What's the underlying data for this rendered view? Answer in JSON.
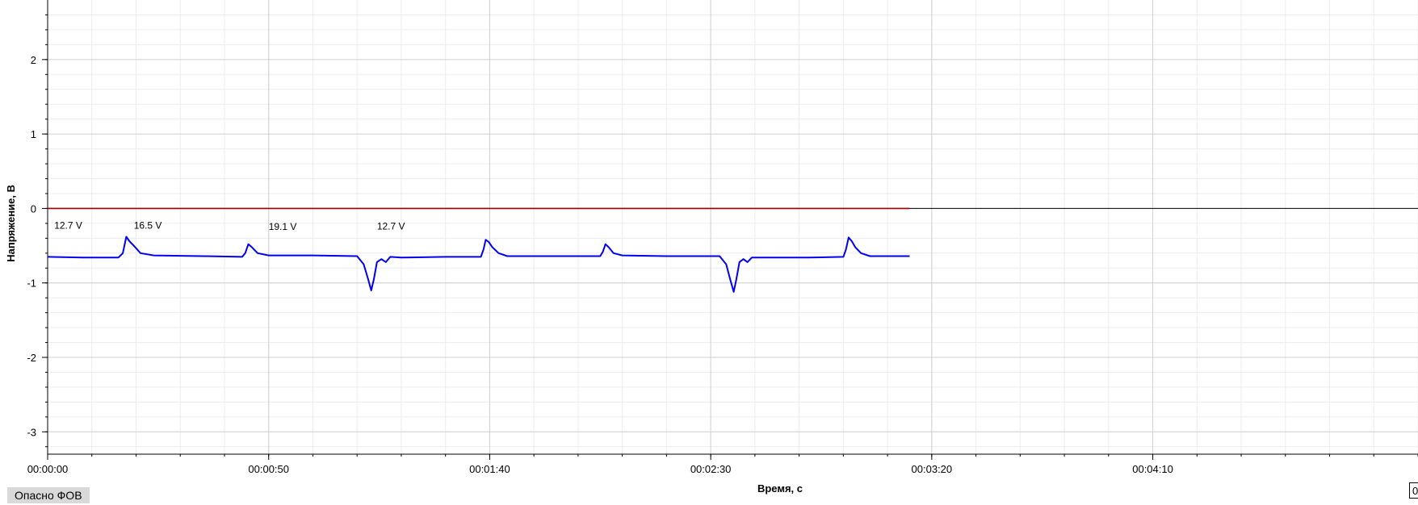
{
  "chart_data": {
    "type": "line",
    "xlabel": "Время, с",
    "ylabel": "Напряжение, В",
    "xlim": [
      0,
      310
    ],
    "ylim": [
      -3.3,
      2.8
    ],
    "x_ticks": [
      0,
      50,
      100,
      150,
      200,
      250
    ],
    "x_tick_labels": [
      "00:00:00",
      "00:00:50",
      "00:01:40",
      "00:02:30",
      "00:03:20",
      "00:04:10"
    ],
    "y_ticks": [
      -3,
      -2,
      -1,
      0,
      1,
      2
    ],
    "grid": true,
    "reference_line": {
      "y": 0,
      "color": "#000000"
    },
    "series": [
      {
        "color": "#0000ee",
        "points": [
          [
            0,
            -0.65
          ],
          [
            8,
            -0.66
          ],
          [
            16,
            -0.66
          ],
          [
            17,
            -0.6
          ],
          [
            17.8,
            -0.38
          ],
          [
            18.5,
            -0.44
          ],
          [
            19.5,
            -0.5
          ],
          [
            21,
            -0.6
          ],
          [
            24,
            -0.63
          ],
          [
            35,
            -0.64
          ],
          [
            44,
            -0.65
          ],
          [
            44.7,
            -0.6
          ],
          [
            45.4,
            -0.48
          ],
          [
            46.2,
            -0.52
          ],
          [
            47.5,
            -0.6
          ],
          [
            50,
            -0.63
          ],
          [
            60,
            -0.63
          ],
          [
            70,
            -0.64
          ],
          [
            71.5,
            -0.75
          ],
          [
            72.5,
            -0.95
          ],
          [
            73.2,
            -1.1
          ],
          [
            73.8,
            -0.95
          ],
          [
            74.5,
            -0.72
          ],
          [
            75.5,
            -0.68
          ],
          [
            76.5,
            -0.72
          ],
          [
            77.5,
            -0.65
          ],
          [
            80,
            -0.66
          ],
          [
            90,
            -0.65
          ],
          [
            98,
            -0.65
          ],
          [
            98.6,
            -0.55
          ],
          [
            99.1,
            -0.42
          ],
          [
            99.8,
            -0.45
          ],
          [
            100.6,
            -0.52
          ],
          [
            102,
            -0.6
          ],
          [
            104,
            -0.64
          ],
          [
            115,
            -0.64
          ],
          [
            125,
            -0.64
          ],
          [
            125.6,
            -0.58
          ],
          [
            126.2,
            -0.48
          ],
          [
            126.9,
            -0.52
          ],
          [
            128,
            -0.6
          ],
          [
            130,
            -0.63
          ],
          [
            140,
            -0.64
          ],
          [
            152,
            -0.64
          ],
          [
            153.5,
            -0.75
          ],
          [
            154.4,
            -0.95
          ],
          [
            155.2,
            -1.12
          ],
          [
            155.8,
            -0.95
          ],
          [
            156.5,
            -0.72
          ],
          [
            157.4,
            -0.68
          ],
          [
            158.3,
            -0.72
          ],
          [
            159.3,
            -0.66
          ],
          [
            162,
            -0.66
          ],
          [
            172,
            -0.66
          ],
          [
            180,
            -0.65
          ],
          [
            180.6,
            -0.55
          ],
          [
            181.2,
            -0.39
          ],
          [
            181.9,
            -0.44
          ],
          [
            182.7,
            -0.52
          ],
          [
            184,
            -0.6
          ],
          [
            186,
            -0.64
          ],
          [
            195,
            -0.64
          ]
        ]
      },
      {
        "color": "#a00000",
        "points": [
          [
            0,
            0
          ],
          [
            195,
            0
          ]
        ]
      }
    ],
    "annotations": [
      {
        "x": 1.5,
        "y": -0.27,
        "text": "12.7 V"
      },
      {
        "x": 19.5,
        "y": -0.27,
        "text": "16.5 V"
      },
      {
        "x": 50,
        "y": -0.29,
        "text": "19.1 V"
      },
      {
        "x": 74.5,
        "y": -0.28,
        "text": "12.7 V"
      }
    ]
  },
  "status_bar": {
    "label": "Опасно ФОВ",
    "corner_text": "0"
  }
}
